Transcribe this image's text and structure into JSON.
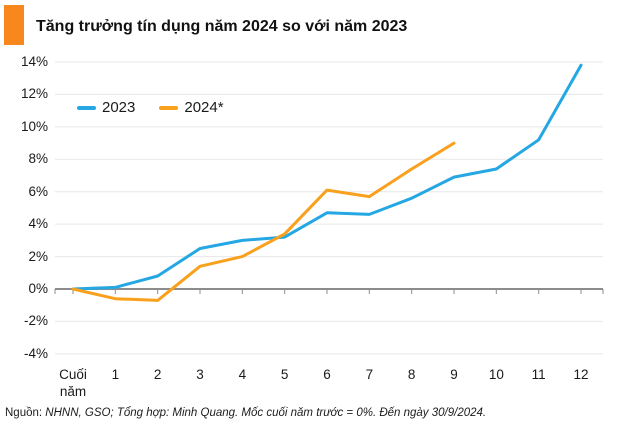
{
  "header": {
    "title": "Tăng trưởng tín dụng năm 2024 so với năm 2023",
    "accent_color": "#F8881D"
  },
  "footer": {
    "prefix": "Nguồn: ",
    "note_italic": "NHNN, GSO; Tổng hợp: Minh Quang. Mốc cuối năm trước = 0%. Đến ngày 30/9/2024."
  },
  "colors": {
    "grid": "#E7E7E7",
    "zero_axis": "#8C8C8C",
    "text": "#1A1A1A",
    "series_2023": "#24A7E3",
    "series_2024": "#F9A01D"
  },
  "chart_data": {
    "type": "line",
    "title": "Tăng trưởng tín dụng năm 2024 so với năm 2023",
    "categories": [
      "Cuối năm",
      "1",
      "2",
      "3",
      "4",
      "5",
      "6",
      "7",
      "8",
      "9",
      "10",
      "11",
      "12"
    ],
    "series": [
      {
        "name": "2023",
        "color": "#24A7E3",
        "values": [
          0,
          0.1,
          0.8,
          2.5,
          3.0,
          3.2,
          4.7,
          4.6,
          5.6,
          6.9,
          7.4,
          9.2,
          13.8
        ]
      },
      {
        "name": "2024*",
        "color": "#F9A01D",
        "values": [
          0,
          -0.6,
          -0.7,
          1.4,
          2.0,
          3.4,
          6.1,
          5.7,
          7.4,
          9.0
        ]
      }
    ],
    "yticks": [
      {
        "value": 14,
        "label": "14%"
      },
      {
        "value": 12,
        "label": "12%"
      },
      {
        "value": 10,
        "label": "10%"
      },
      {
        "value": 8,
        "label": "8%"
      },
      {
        "value": 6,
        "label": "6%"
      },
      {
        "value": 4,
        "label": "4%"
      },
      {
        "value": 2,
        "label": "2%"
      },
      {
        "value": 0,
        "label": "0%"
      },
      {
        "value": -2,
        "label": "-2%"
      },
      {
        "value": -4,
        "label": "-4%"
      }
    ],
    "ylim": [
      -5,
      15
    ],
    "xlabel": "",
    "ylabel": "",
    "grid": "horizontal",
    "legend_position": "top-left",
    "zero_axis_emphasized": true
  }
}
